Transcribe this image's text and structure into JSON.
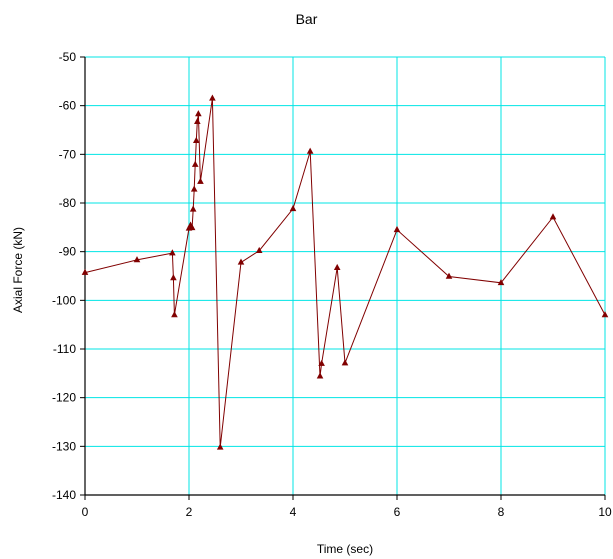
{
  "chart_data": {
    "type": "line",
    "title": "Bar",
    "xlabel": "Time (sec)",
    "ylabel": "Axial Force (kN)",
    "xlim": [
      0,
      10
    ],
    "ylim": [
      -140,
      -50
    ],
    "xticks": [
      0,
      2,
      4,
      6,
      8,
      10
    ],
    "yticks": [
      -140,
      -130,
      -120,
      -110,
      -100,
      -90,
      -80,
      -70,
      -60,
      -50
    ],
    "x_tick_labels": [
      "0",
      "2",
      "4",
      "6",
      "8",
      "10"
    ],
    "y_tick_labels": [
      "-140",
      "-130",
      "-120",
      "-110",
      "-100",
      "-90",
      "-80",
      "-70",
      "-60",
      "-50"
    ],
    "grid": true,
    "colors": {
      "series": "#800000",
      "grid": "#00e5e5",
      "axis": "#000000"
    },
    "series": [
      {
        "marker": "triangle",
        "points": [
          [
            0,
            -94.3
          ],
          [
            1,
            -91.7
          ],
          [
            1.68,
            -90.3
          ],
          [
            1.7,
            -95.4
          ],
          [
            1.72,
            -103.0
          ],
          [
            2.0,
            -85.2
          ],
          [
            2.03,
            -84.6
          ],
          [
            2.06,
            -85.1
          ],
          [
            2.08,
            -81.3
          ],
          [
            2.1,
            -77.2
          ],
          [
            2.12,
            -72.1
          ],
          [
            2.14,
            -67.2
          ],
          [
            2.16,
            -63.3
          ],
          [
            2.18,
            -61.7
          ],
          [
            2.22,
            -75.6
          ],
          [
            2.45,
            -58.5
          ],
          [
            2.6,
            -130.2
          ],
          [
            3.0,
            -92.2
          ],
          [
            3.35,
            -89.8
          ],
          [
            4.0,
            -81.2
          ],
          [
            4.33,
            -69.4
          ],
          [
            4.52,
            -115.6
          ],
          [
            4.55,
            -113.0
          ],
          [
            4.85,
            -93.3
          ],
          [
            5.0,
            -112.9
          ],
          [
            6.0,
            -85.5
          ],
          [
            7.0,
            -95.1
          ],
          [
            8.0,
            -96.4
          ],
          [
            9.0,
            -82.9
          ],
          [
            10.0,
            -103.0
          ]
        ]
      }
    ]
  }
}
